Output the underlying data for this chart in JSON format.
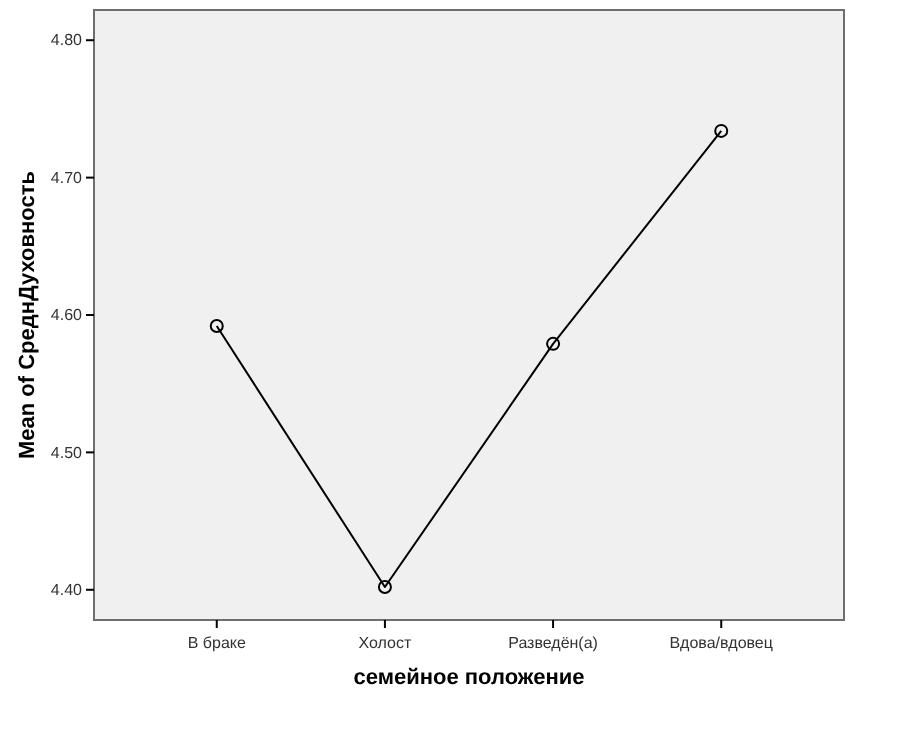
{
  "chart_data": {
    "type": "line",
    "xlabel": "семейное положение",
    "ylabel": "Mean of СреднДуховность",
    "categories": [
      "В браке",
      "Холост",
      "Разведён(а)",
      "Вдова/вдовец"
    ],
    "series": [
      {
        "color": "#000000",
        "values": [
          4.592,
          4.402,
          4.579,
          4.734
        ]
      }
    ],
    "ylim": [
      4.378,
      4.822
    ],
    "yticks": [
      {
        "value": 4.4,
        "label": "4.40"
      },
      {
        "value": 4.5,
        "label": "4.50"
      },
      {
        "value": 4.6,
        "label": "4.60"
      },
      {
        "value": 4.7,
        "label": "4.70"
      },
      {
        "value": 4.8,
        "label": "4.80"
      }
    ],
    "grid": false,
    "marker": "circle",
    "line_style": "solid"
  }
}
